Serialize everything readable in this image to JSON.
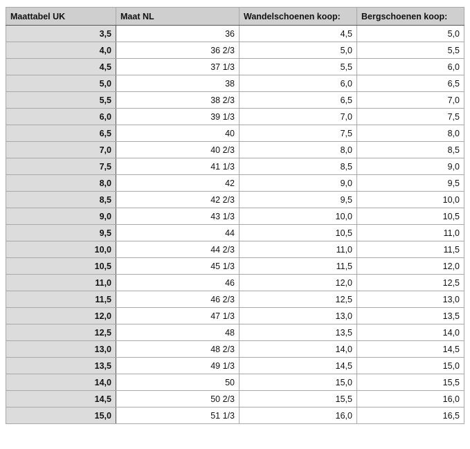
{
  "table": {
    "headers": [
      "Maattabel UK",
      "Maat NL",
      "Wandelschoenen koop:",
      "Bergschoenen koop:"
    ],
    "rows": [
      [
        "3,5",
        "36",
        "4,5",
        "5,0"
      ],
      [
        "4,0",
        "36 2/3",
        "5,0",
        "5,5"
      ],
      [
        "4,5",
        "37 1/3",
        "5,5",
        "6,0"
      ],
      [
        "5,0",
        "38",
        "6,0",
        "6,5"
      ],
      [
        "5,5",
        "38 2/3",
        "6,5",
        "7,0"
      ],
      [
        "6,0",
        "39 1/3",
        "7,0",
        "7,5"
      ],
      [
        "6,5",
        "40",
        "7,5",
        "8,0"
      ],
      [
        "7,0",
        "40 2/3",
        "8,0",
        "8,5"
      ],
      [
        "7,5",
        "41 1/3",
        "8,5",
        "9,0"
      ],
      [
        "8,0",
        "42",
        "9,0",
        "9,5"
      ],
      [
        "8,5",
        "42 2/3",
        "9,5",
        "10,0"
      ],
      [
        "9,0",
        "43 1/3",
        "10,0",
        "10,5"
      ],
      [
        "9,5",
        "44",
        "10,5",
        "11,0"
      ],
      [
        "10,0",
        "44 2/3",
        "11,0",
        "11,5"
      ],
      [
        "10,5",
        "45 1/3",
        "11,5",
        "12,0"
      ],
      [
        "11,0",
        "46",
        "12,0",
        "12,5"
      ],
      [
        "11,5",
        "46 2/3",
        "12,5",
        "13,0"
      ],
      [
        "12,0",
        "47 1/3",
        "13,0",
        "13,5"
      ],
      [
        "12,5",
        "48",
        "13,5",
        "14,0"
      ],
      [
        "13,0",
        "48 2/3",
        "14,0",
        "14,5"
      ],
      [
        "13,5",
        "49 1/3",
        "14,5",
        "15,0"
      ],
      [
        "14,0",
        "50",
        "15,0",
        "15,5"
      ],
      [
        "14,5",
        "50 2/3",
        "15,5",
        "16,0"
      ],
      [
        "15,0",
        "51 1/3",
        "16,0",
        "16,5"
      ]
    ]
  }
}
